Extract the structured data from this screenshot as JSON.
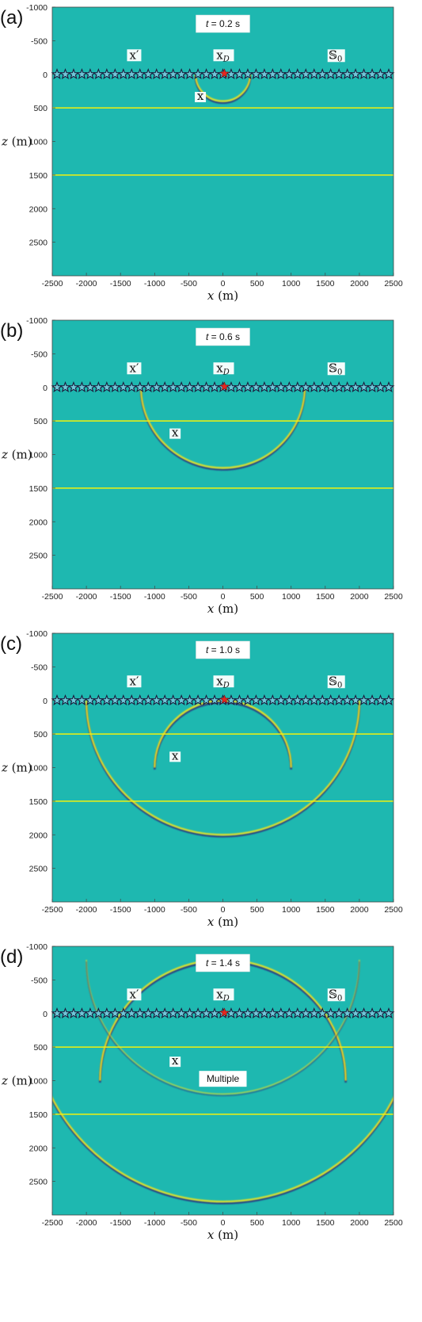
{
  "panels": [
    {
      "label": "(a)",
      "time_label": "t",
      "time_value": "= 0.2 s",
      "wavefront_x_label": "x",
      "extra_label": null,
      "radius_m": 400,
      "reflection_m": null,
      "refraction": false,
      "multiple": false
    },
    {
      "label": "(b)",
      "time_label": "t",
      "time_value": "= 0.6 s",
      "wavefront_x_label": "x",
      "extra_label": null,
      "radius_m": 1200,
      "reflection_m": null,
      "refraction": false,
      "multiple": false
    },
    {
      "label": "(c)",
      "time_label": "t",
      "time_value": "= 1.0 s",
      "wavefront_x_label": "x",
      "extra_label": null,
      "radius_m": 2000,
      "reflection_m": 1000,
      "refraction": false,
      "multiple": false
    },
    {
      "label": "(d)",
      "time_label": "t",
      "time_value": "= 1.4 s",
      "wavefront_x_label": "x",
      "extra_label": "Multiple",
      "radius_m": 2800,
      "reflection_m": 1800,
      "refraction": true,
      "multiple": true
    }
  ],
  "annotations": {
    "x_prime": "x′",
    "x_D_main": "x",
    "x_D_sub": "D",
    "S0_main": "𝕊",
    "S0_sub": "0"
  },
  "axes": {
    "xlabel_var": "x",
    "xlabel_unit": "(m)",
    "ylabel_var": "z",
    "ylabel_unit": "(m)",
    "xlim": [
      -2500,
      2500
    ],
    "ylim": [
      -1000,
      3000
    ],
    "xticks": [
      -2500,
      -2000,
      -1500,
      -1000,
      -500,
      0,
      500,
      1000,
      1500,
      2000,
      2500
    ],
    "yticks": [
      -1000,
      -500,
      0,
      500,
      1000,
      1500,
      2000,
      2500
    ]
  },
  "model": {
    "interfaces_m": [
      500,
      1500
    ],
    "receiver_depth_m": 0,
    "source_x_m": 0,
    "receiver_count": 41
  },
  "colors": {
    "background": "#1eb8b0",
    "interface": "#f2f20e",
    "wave_bright": "#f5e51e",
    "wave_dark": "#2a2a7a",
    "source": "#e8261f",
    "receiver": "#1a1a3a"
  }
}
